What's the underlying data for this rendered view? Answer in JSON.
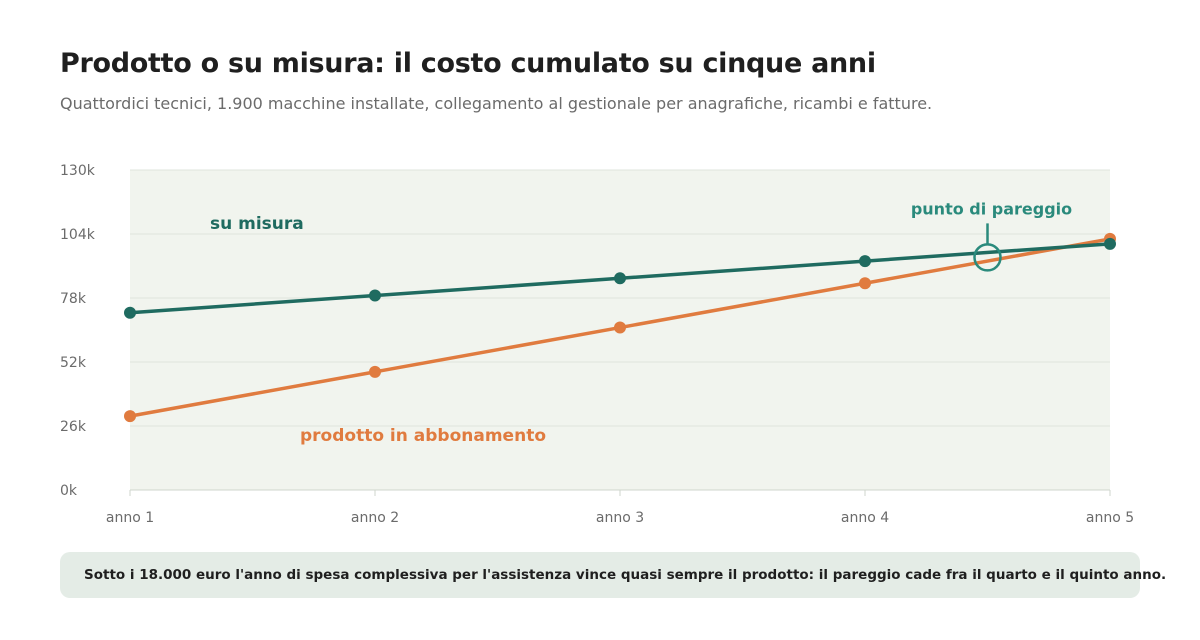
{
  "header": {
    "title": "Prodotto o su misura: il costo cumulato su cinque anni",
    "subtitle": "Quattordici tecnici, 1.900 macchine installate, collegamento al gestionale per anagrafiche, ricambi e fatture."
  },
  "chart_data": {
    "type": "line",
    "x": [
      "anno 1",
      "anno 2",
      "anno 3",
      "anno 4",
      "anno 5"
    ],
    "ylim": [
      0,
      130000
    ],
    "yticks": [
      0,
      26000,
      52000,
      78000,
      104000,
      130000
    ],
    "ytick_labels": [
      "0k",
      "26k",
      "52k",
      "78k",
      "104k",
      "130k"
    ],
    "grid": true,
    "series": [
      {
        "name": "su misura",
        "color": "#1f6b60",
        "values": [
          72000,
          79000,
          86000,
          93000,
          100000
        ]
      },
      {
        "name": "prodotto in abbonamento",
        "color": "#e07b3f",
        "values": [
          30000,
          48000,
          66000,
          84000,
          102000
        ]
      }
    ],
    "annotation": {
      "label": "punto di pareggio",
      "x": 4.5,
      "y": 94500,
      "color": "#2a8a7c"
    }
  },
  "footer": {
    "note": "Sotto i 18.000 euro l'anno di spesa complessiva per l'assistenza vince quasi sempre il prodotto: il pareggio cade fra il quarto e il quinto anno."
  }
}
